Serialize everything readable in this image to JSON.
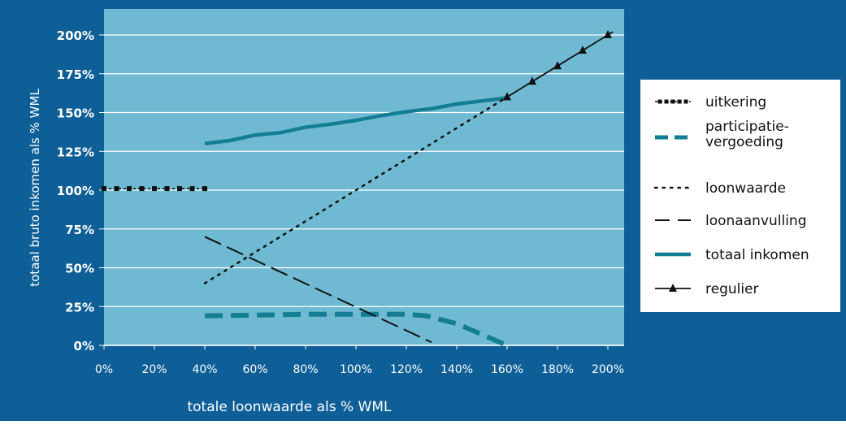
{
  "chart_data": {
    "type": "line",
    "title": "",
    "xlabel": "totale loonwaarde als % WML",
    "ylabel": "totaal bruto inkomen als % WML",
    "xlim": [
      0,
      200
    ],
    "ylim": [
      0,
      200
    ],
    "x_ticks": [
      "0%",
      "20%",
      "40%",
      "60%",
      "80%",
      "100%",
      "120%",
      "140%",
      "160%",
      "180%",
      "200%"
    ],
    "y_ticks": [
      "0%",
      "25%",
      "50%",
      "75%",
      "100%",
      "125%",
      "150%",
      "175%",
      "200%"
    ],
    "grid": "horizontal",
    "legend_position": "right",
    "colors": {
      "frame": "#0e5f97",
      "plot_bg": "#6fbad2",
      "gridline": "#ffffff",
      "teal": "#137e93",
      "black": "#111111"
    },
    "series": [
      {
        "name": "uitkering",
        "style": "dotted-square-markers",
        "x": [
          0,
          5,
          10,
          15,
          20,
          25,
          30,
          35,
          40
        ],
        "y": [
          101,
          101,
          101,
          101,
          101,
          101,
          101,
          101,
          101
        ]
      },
      {
        "name": "participatie- vergoeding",
        "style": "teal-dashed-thick",
        "x": [
          40,
          60,
          80,
          100,
          120,
          128,
          140,
          150,
          160
        ],
        "y": [
          19,
          19.5,
          20,
          20,
          20,
          19,
          14,
          7,
          0
        ]
      },
      {
        "name": "loonwaarde",
        "style": "black-dotted",
        "x": [
          40,
          160
        ],
        "y": [
          40,
          160
        ]
      },
      {
        "name": "loonaanvulling",
        "style": "black-long-dash",
        "x": [
          40,
          130
        ],
        "y": [
          70,
          2
        ]
      },
      {
        "name": "totaal inkomen",
        "style": "teal-solid-thick",
        "x": [
          40,
          50,
          60,
          70,
          80,
          90,
          100,
          110,
          120,
          130,
          140,
          150,
          160
        ],
        "y": [
          130,
          132,
          135.5,
          137,
          140.5,
          142.5,
          145,
          148,
          150.5,
          152.5,
          155.5,
          157.5,
          159.5
        ]
      },
      {
        "name": "regulier",
        "style": "black-solid-triangles",
        "x": [
          160,
          170,
          180,
          190,
          200,
          202
        ],
        "y": [
          160,
          170,
          180,
          190,
          200,
          202
        ]
      }
    ],
    "legend": [
      {
        "label": "uitkering"
      },
      {
        "label": "participatie-\nvergoeding",
        "lines": [
          "participatie-",
          "vergoeding"
        ]
      },
      {
        "label": "loonwaarde"
      },
      {
        "label": "loonaanvulling"
      },
      {
        "label": "totaal inkomen"
      },
      {
        "label": "regulier"
      }
    ]
  }
}
